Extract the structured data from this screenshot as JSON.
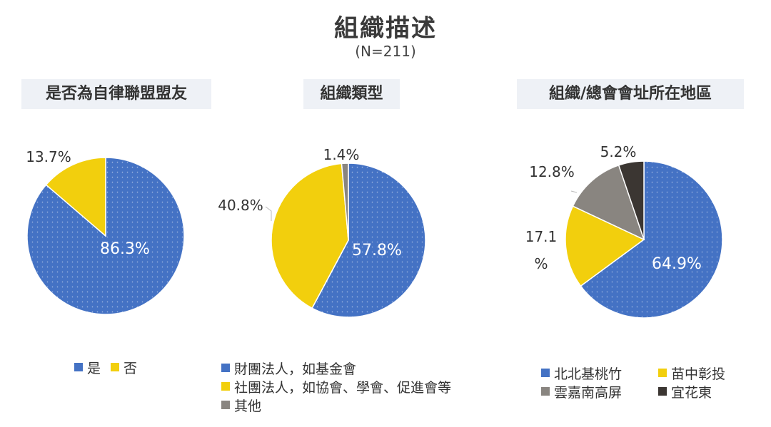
{
  "title": "組織描述",
  "subtitle": "(N=211)",
  "colors": {
    "blue": "#4472C4",
    "yellow": "#F2CF0D",
    "gray": "#898580",
    "dark": "#3B3632"
  },
  "chart_data": [
    {
      "type": "pie",
      "title": "是否為自律聯盟盟友",
      "slices": [
        {
          "label": "是",
          "value": 86.3,
          "display": "86.3%"
        },
        {
          "label": "否",
          "value": 13.7,
          "display": "13.7%"
        }
      ],
      "legend": [
        "是",
        "否"
      ]
    },
    {
      "type": "pie",
      "title": "組織類型",
      "slices": [
        {
          "label": "財團法人，如基金會",
          "value": 57.8,
          "display": "57.8%"
        },
        {
          "label": "社團法人，如協會、學會、促進會等",
          "value": 40.8,
          "display": "40.8%"
        },
        {
          "label": "其他",
          "value": 1.4,
          "display": "1.4%"
        }
      ],
      "legend": [
        "財團法人，如基金會",
        "社團法人，如協會、學會、促進會等",
        "其他"
      ]
    },
    {
      "type": "pie",
      "title": "組織/總會會址所在地區",
      "slices": [
        {
          "label": "北北基桃竹",
          "value": 64.9,
          "display": "64.9%"
        },
        {
          "label": "苗中彰投",
          "value": 17.1,
          "display": "17.1\n%"
        },
        {
          "label": "雲嘉南高屏",
          "value": 12.8,
          "display": "12.8%"
        },
        {
          "label": "宜花東",
          "value": 5.2,
          "display": "5.2%"
        }
      ],
      "legend": [
        "北北基桃竹",
        "苗中彰投",
        "雲嘉南高屏",
        "宜花東"
      ]
    }
  ]
}
